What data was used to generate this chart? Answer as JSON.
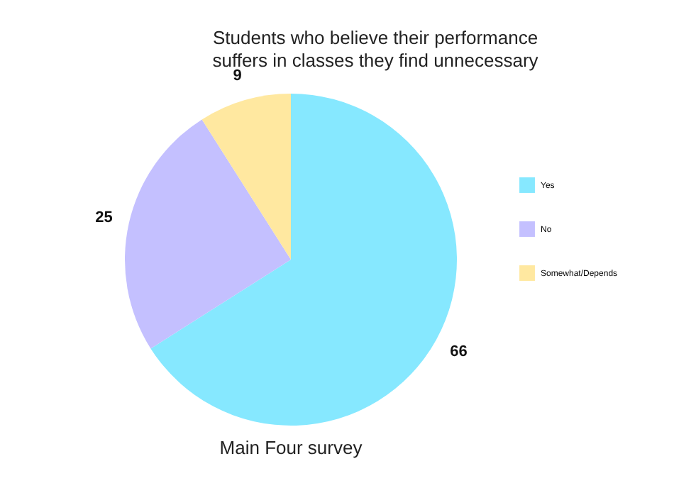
{
  "chart_data": {
    "type": "pie",
    "title": "Students who believe their performance suffers in classes they find unnecessary",
    "categories": [
      "Yes",
      "No",
      "Somewhat/Depends"
    ],
    "values": [
      66,
      25,
      9
    ],
    "colors": [
      "#86e8ff",
      "#c4c0ff",
      "#ffe8a0"
    ],
    "data_labels": true,
    "legend": "right",
    "annotations": [
      "Main Four survey"
    ]
  }
}
